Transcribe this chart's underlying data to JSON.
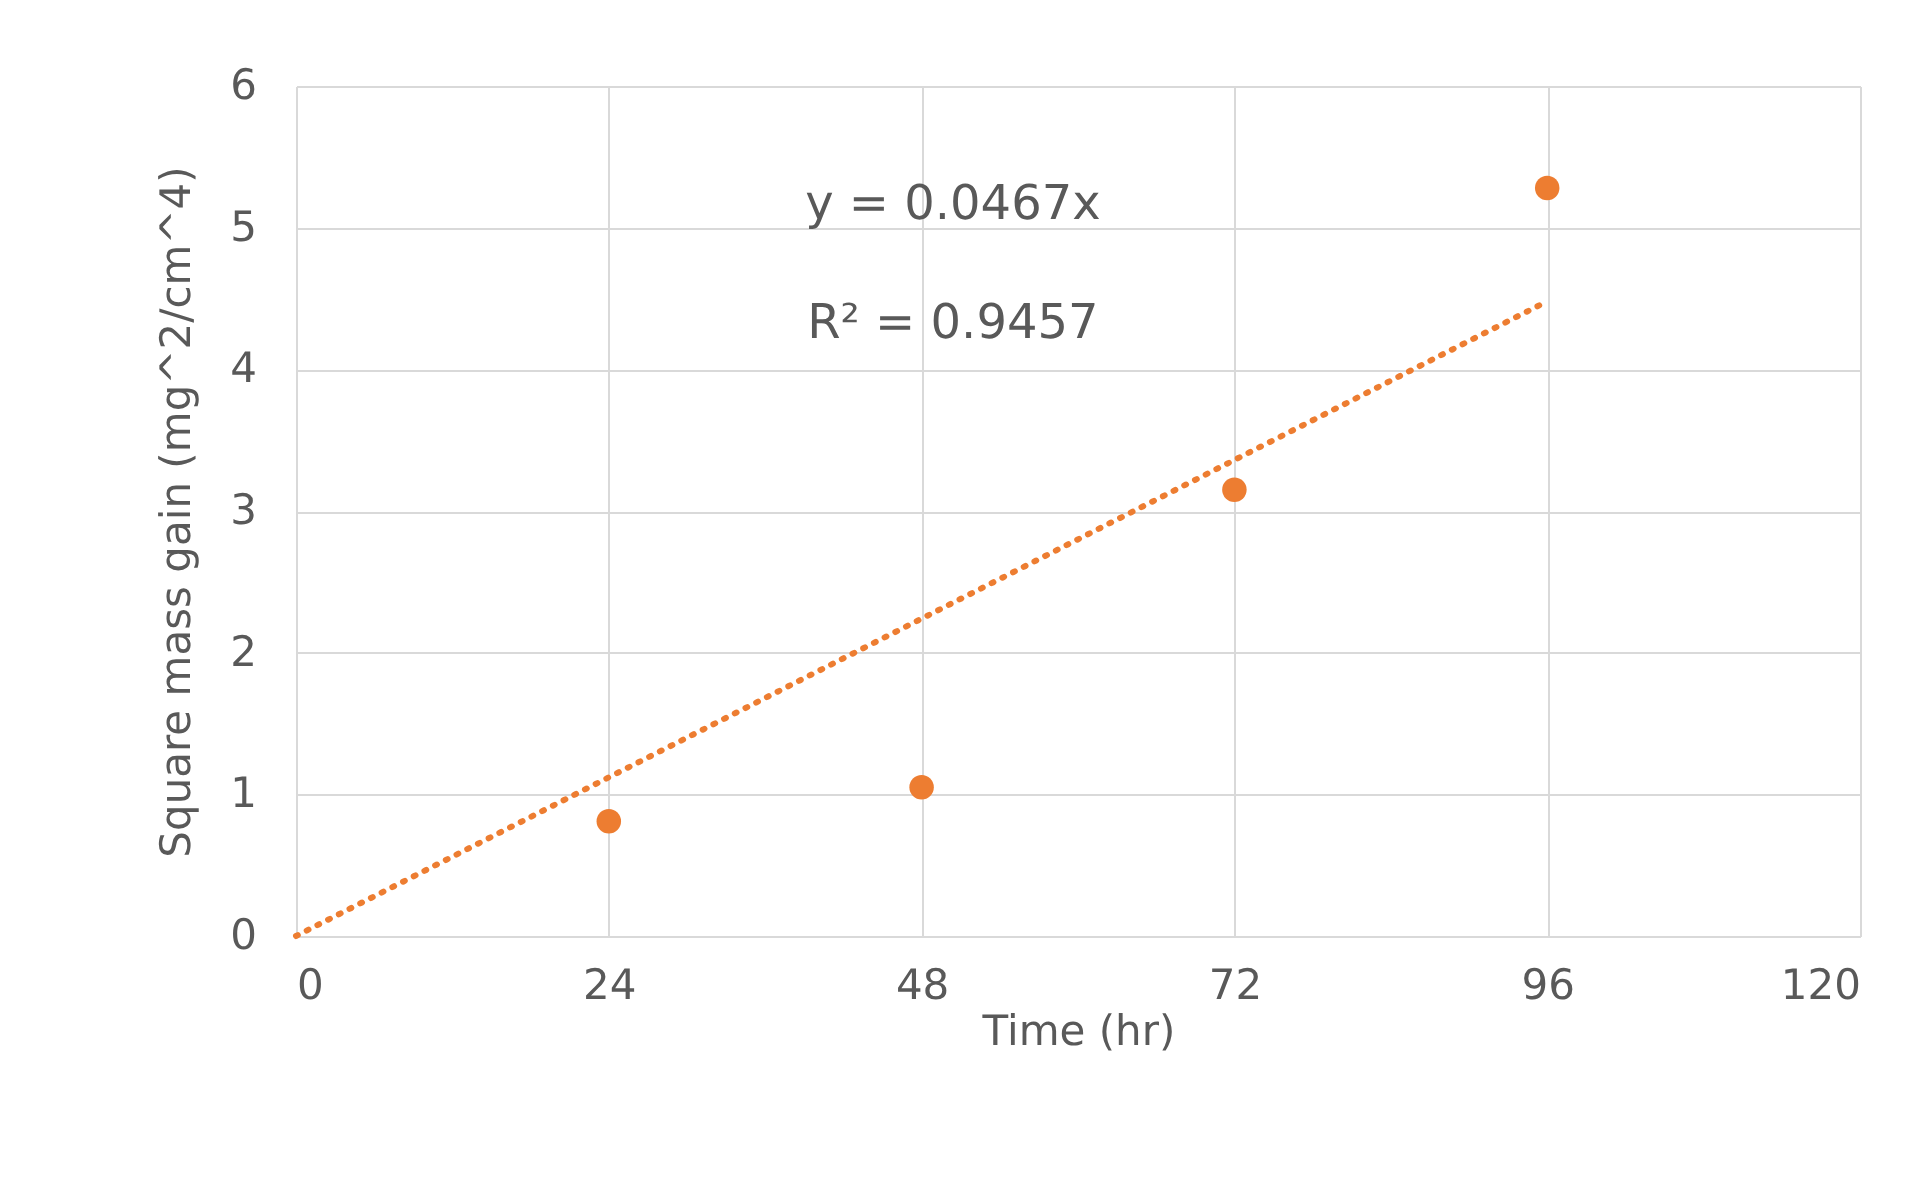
{
  "chart_data": {
    "type": "scatter",
    "xlabel": "Time (hr)",
    "ylabel": "Square mass gain (mg^2/cm^4)",
    "xlim": [
      0,
      120
    ],
    "ylim": [
      0,
      6
    ],
    "xticks": [
      0,
      24,
      48,
      72,
      96,
      120
    ],
    "yticks": [
      0,
      1,
      2,
      3,
      4,
      5,
      6
    ],
    "grid": true,
    "annotations": [
      "y = 0.0467x",
      "R² = 0.9457"
    ],
    "series": [
      {
        "marker": "circle",
        "color": "#ed7d31",
        "x": [
          24,
          48,
          72,
          96
        ],
        "values": [
          0.81,
          1.05,
          3.15,
          5.28
        ]
      },
      {
        "type": "line",
        "marker": "none",
        "line_style": "dotted",
        "color": "#ed7d31",
        "x": [
          0,
          96
        ],
        "values": [
          0,
          4.48
        ]
      }
    ]
  }
}
